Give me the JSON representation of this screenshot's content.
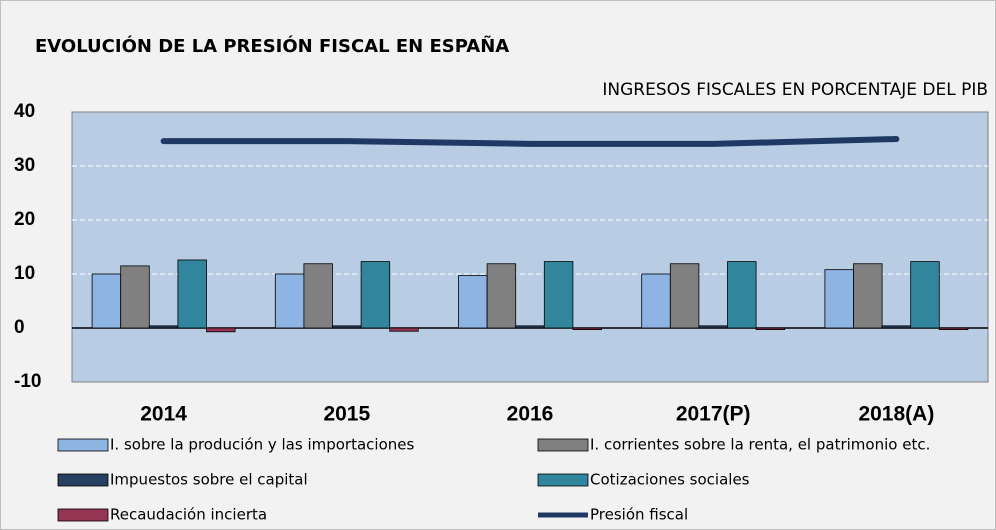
{
  "chart_data": {
    "type": "bar",
    "title": "EVOLUCIÓN DE LA PRESIÓN FISCAL EN ESPAÑA",
    "subtitle": "INGRESOS FISCALES EN PORCENTAJE DEL PIB",
    "categories": [
      "2014",
      "2015",
      "2016",
      "2017(P)",
      "2018(A)"
    ],
    "series": [
      {
        "name": "I. sobre la produción y las importaciones",
        "color": "#8db4e2",
        "values": [
          10.0,
          10.0,
          9.7,
          10.0,
          10.8
        ]
      },
      {
        "name": "I. corrientes sobre la renta, el patrimonio etc.",
        "color": "#808080",
        "values": [
          11.5,
          11.9,
          11.9,
          11.9,
          11.9
        ]
      },
      {
        "name": "Impuestos sobre el capital",
        "color": "#254061",
        "values": [
          0.4,
          0.4,
          0.4,
          0.4,
          0.4
        ]
      },
      {
        "name": "Cotizaciones sociales",
        "color": "#31859c",
        "values": [
          12.6,
          12.3,
          12.3,
          12.3,
          12.3
        ]
      },
      {
        "name": "Recaudación incierta",
        "color": "#953553",
        "values": [
          -0.7,
          -0.6,
          -0.3,
          -0.3,
          -0.3
        ]
      },
      {
        "name": "Presión fiscal",
        "color": "#1f3864",
        "type": "line",
        "values": [
          34.6,
          34.6,
          34.1,
          34.1,
          35.0
        ]
      }
    ],
    "ylim": [
      -10,
      40
    ],
    "yticks": [
      -10,
      0,
      10,
      20,
      30,
      40
    ],
    "grid": true
  }
}
